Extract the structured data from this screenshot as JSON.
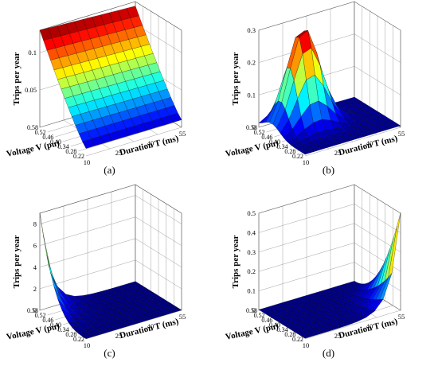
{
  "chart_data": [
    {
      "type": "surface",
      "panel_label": "(a)",
      "zlabel": "Trips per year",
      "xlabel": "Duration T (ms)",
      "ylabel": "Voltage V (pu)",
      "x_ticks": [
        "10",
        "25",
        "40",
        "55"
      ],
      "y_ticks": [
        "0.58",
        "0.52",
        "0.46",
        "0.40",
        "0.34",
        "0.28",
        "0.22"
      ],
      "z_ticks": [
        "0.05",
        "0.1"
      ],
      "zlim": [
        0,
        0.13
      ],
      "x": [
        10,
        55
      ],
      "y": [
        0.58,
        0.22
      ],
      "description_values": "trips decrease with voltage from ~0.13 at V=0.58 to ~0.01 at V=0.22, nearly constant across duration"
    },
    {
      "type": "surface",
      "panel_label": "(b)",
      "zlabel": "Trips per year",
      "xlabel": "Duration T (ms)",
      "ylabel": "Voltage V (pu)",
      "x_ticks": [
        "10",
        "25",
        "40",
        "55"
      ],
      "y_ticks": [
        "0.58",
        "0.52",
        "0.46",
        "0.40",
        "0.34",
        "0.28",
        "0.22"
      ],
      "z_ticks": [
        "0",
        "0.1",
        "0.2",
        "0.3"
      ],
      "zlim": [
        0,
        0.3
      ],
      "peak": 0.3
    },
    {
      "type": "surface",
      "panel_label": "(c)",
      "zlabel": "Trips per year",
      "xlabel": "Duration T (ms)",
      "ylabel": "Voltage V (pu)",
      "x_ticks": [
        "10",
        "25",
        "40",
        "55"
      ],
      "y_ticks": [
        "0.58",
        "0.52",
        "0.46",
        "0.40",
        "0.34",
        "0.28",
        "0.22"
      ],
      "z_ticks": [
        "0",
        "2",
        "4",
        "6",
        "8"
      ],
      "zlim": [
        0,
        9
      ],
      "peak": 9
    },
    {
      "type": "surface",
      "panel_label": "(d)",
      "zlabel": "Trips per year",
      "xlabel": "Duration T (ms)",
      "ylabel": "Voltage V (pu)",
      "x_ticks": [
        "10",
        "25",
        "40",
        "55"
      ],
      "y_ticks": [
        "0.58",
        "0.52",
        "0.46",
        "0.40",
        "0.34",
        "0.28",
        "0.22"
      ],
      "z_ticks": [
        "0",
        "0.1",
        "0.2",
        "0.3",
        "0.4",
        "0.5"
      ],
      "zlim": [
        0,
        0.5
      ],
      "peak": 0.5
    }
  ]
}
